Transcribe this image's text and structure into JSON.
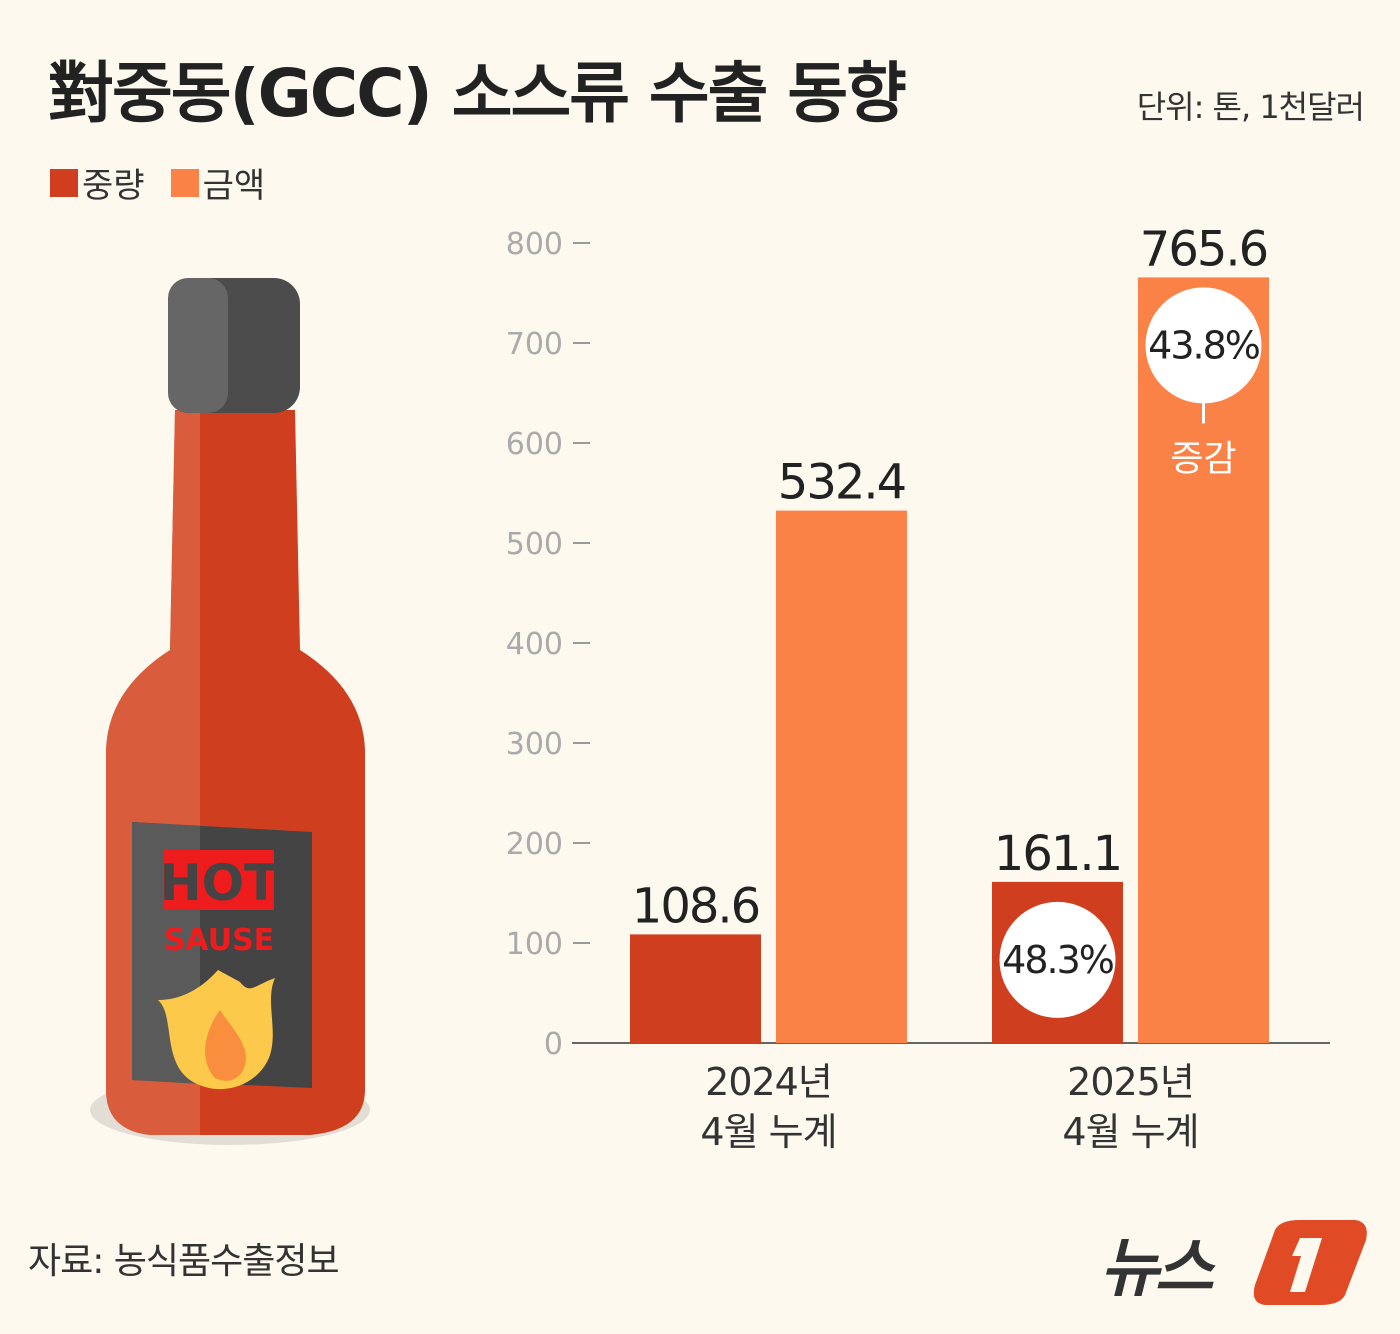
{
  "header": {
    "title": "對중동(GCC) 소스류 수출 동향",
    "unit": "단위: 톤, 1천달러"
  },
  "legend": [
    {
      "label": "중량",
      "color": "#cf3f1f"
    },
    {
      "label": "금액",
      "color": "#fb8247"
    }
  ],
  "illustration": {
    "label_top": "HOT",
    "label_bottom": "SAUSE"
  },
  "chart_data": {
    "type": "bar",
    "categories": [
      "2024년\n4월 누계",
      "2025년\n4월 누계"
    ],
    "category_lines": [
      [
        "2024년",
        "4월 누계"
      ],
      [
        "2025년",
        "4월 누계"
      ]
    ],
    "series": [
      {
        "name": "중량",
        "values": [
          108.6,
          161.1
        ],
        "color": "#cf3f1f"
      },
      {
        "name": "금액",
        "values": [
          532.4,
          765.6
        ],
        "color": "#fb8247"
      }
    ],
    "data_labels": [
      [
        "108.6",
        "161.1"
      ],
      [
        "532.4",
        "765.6"
      ]
    ],
    "ylim": [
      0,
      800
    ],
    "yticks": [
      0,
      100,
      200,
      300,
      400,
      500,
      600,
      700,
      800
    ],
    "grid": false,
    "annotations": [
      {
        "text": "48.3%",
        "series": 0,
        "category": 1
      },
      {
        "text": "43.8%",
        "series": 1,
        "category": 1,
        "note": "증감"
      }
    ]
  },
  "footer": {
    "source": "자료: 농식품수출정보",
    "logo": "뉴스1"
  }
}
